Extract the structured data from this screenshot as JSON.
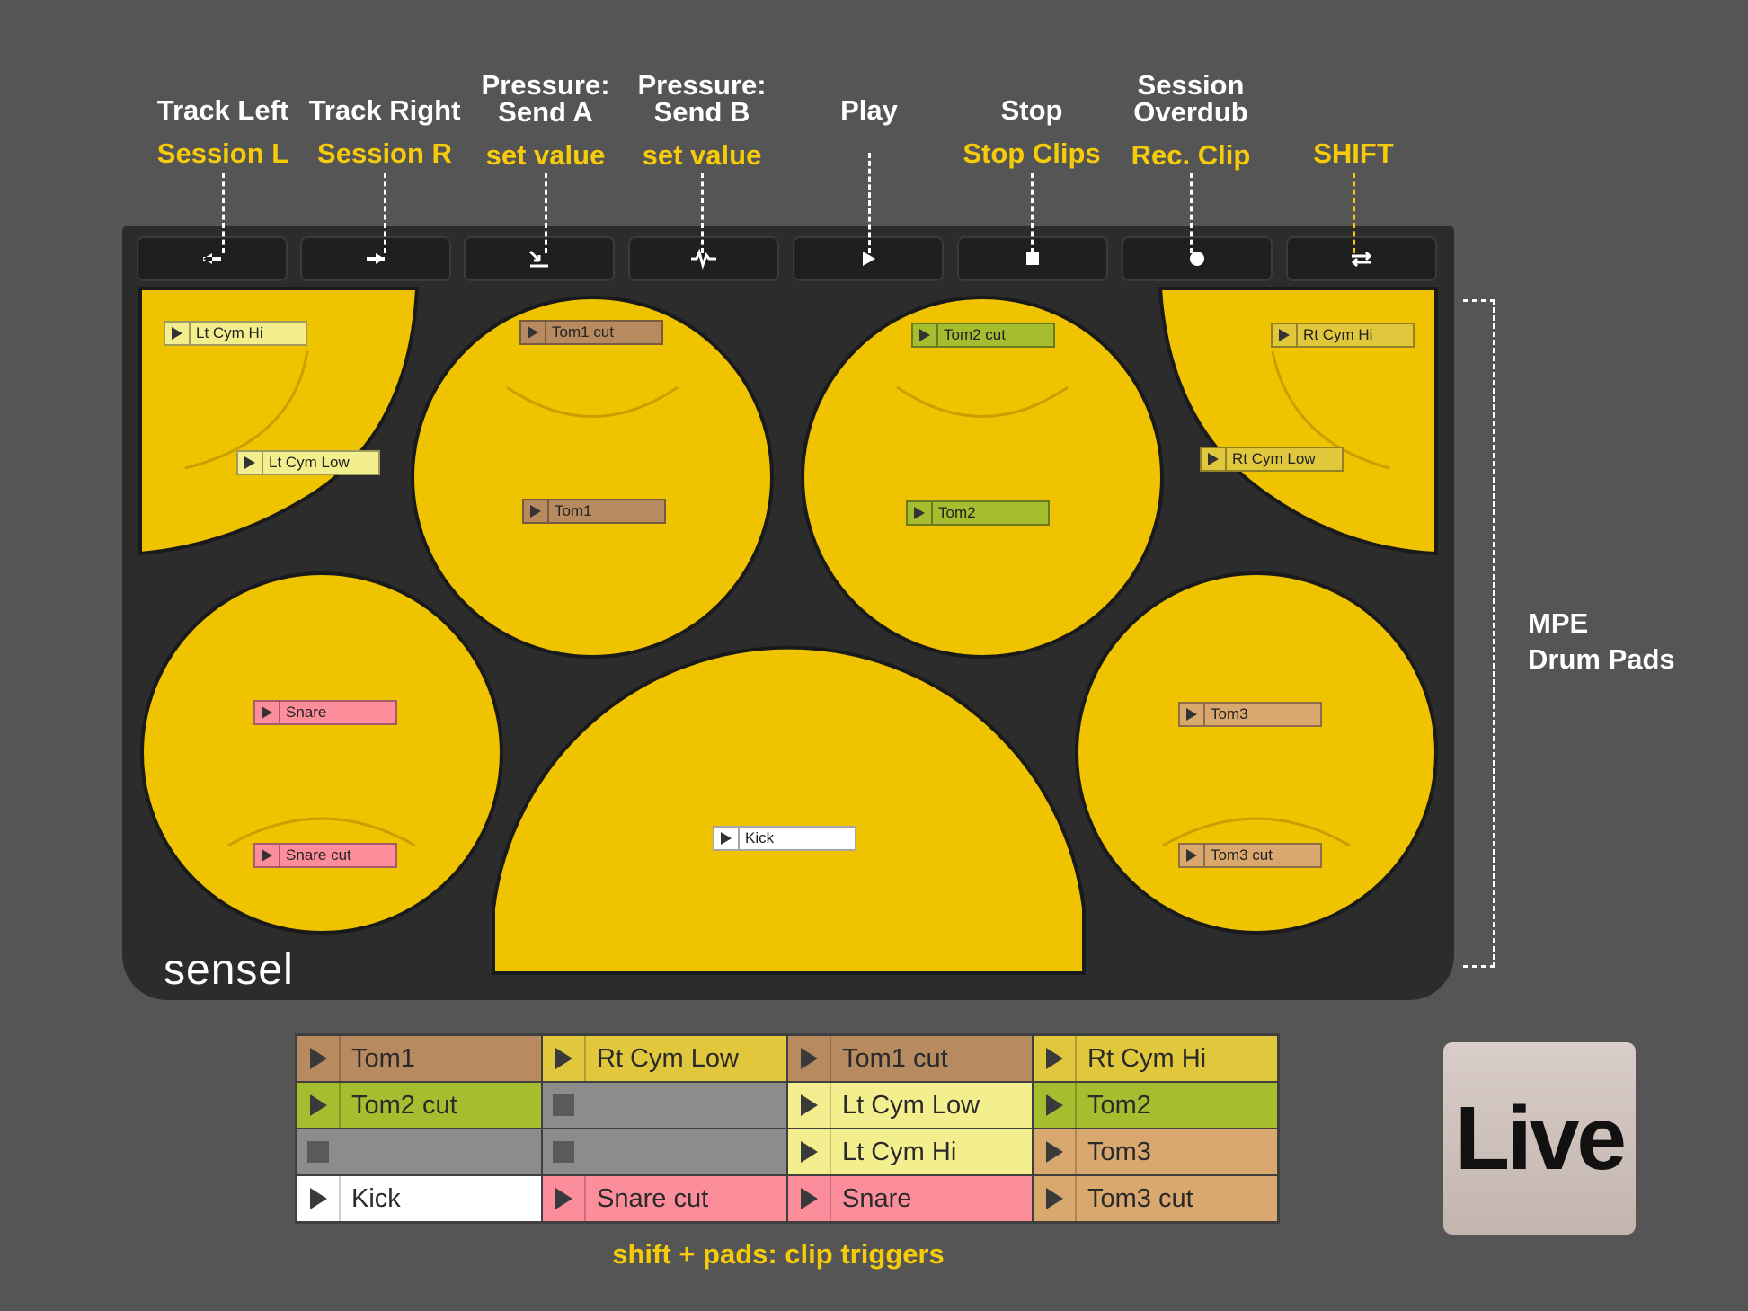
{
  "buttons": [
    {
      "top": "Track Left",
      "bottom": "Session L",
      "icon": "arrow-left-icon"
    },
    {
      "top": "Track Right",
      "bottom": "Session R",
      "icon": "arrow-right-icon"
    },
    {
      "top": "Pressure:\nSend A",
      "bottom": "set value",
      "icon": "send-a-icon"
    },
    {
      "top": "Pressure:\nSend B",
      "bottom": "set value",
      "icon": "waveform-icon"
    },
    {
      "top": "Play",
      "bottom": "",
      "icon": "play-icon"
    },
    {
      "top": "Stop",
      "bottom": "Stop Clips",
      "icon": "stop-icon"
    },
    {
      "top": "Session\nOverdub",
      "bottom": "Rec. Clip",
      "icon": "record-icon"
    },
    {
      "top": "",
      "bottom": "SHIFT",
      "icon": "loop-icon"
    }
  ],
  "pad_clips": [
    {
      "label": "Lt Cym Hi",
      "color": "#f4ef8e"
    },
    {
      "label": "Lt Cym Low",
      "color": "#f4ef8e"
    },
    {
      "label": "Tom1 cut",
      "color": "#b88a60"
    },
    {
      "label": "Tom1",
      "color": "#b88a60"
    },
    {
      "label": "Tom2 cut",
      "color": "#a5bd2f"
    },
    {
      "label": "Tom2",
      "color": "#a5bd2f"
    },
    {
      "label": "Rt Cym Hi",
      "color": "#e0c73b"
    },
    {
      "label": "Rt Cym Low",
      "color": "#e0c73b"
    },
    {
      "label": "Snare",
      "color": "#fc8d9b"
    },
    {
      "label": "Snare cut",
      "color": "#fc8d9b"
    },
    {
      "label": "Kick",
      "color": "#ffffff"
    },
    {
      "label": "Tom3",
      "color": "#d8a86e"
    },
    {
      "label": "Tom3 cut",
      "color": "#d8a86e"
    }
  ],
  "pad_color": "#efc300",
  "brand": "sensel",
  "side_label": {
    "line1": "MPE",
    "line2": "Drum Pads"
  },
  "session_grid": [
    [
      {
        "label": "Tom1",
        "color": "#b88a60",
        "state": "play"
      },
      {
        "label": "Rt Cym Low",
        "color": "#e0c73b",
        "state": "play"
      },
      {
        "label": "Tom1 cut",
        "color": "#b88a60",
        "state": "play"
      },
      {
        "label": "Rt Cym Hi",
        "color": "#e0c73b",
        "state": "play"
      }
    ],
    [
      {
        "label": "Tom2 cut",
        "color": "#a5bd2f",
        "state": "play"
      },
      {
        "label": "",
        "color": "#8c8c8c",
        "state": "empty"
      },
      {
        "label": "Lt Cym Low",
        "color": "#f4ef8e",
        "state": "play"
      },
      {
        "label": "Tom2",
        "color": "#a5bd2f",
        "state": "play"
      }
    ],
    [
      {
        "label": "",
        "color": "#8c8c8c",
        "state": "empty"
      },
      {
        "label": "",
        "color": "#8c8c8c",
        "state": "empty"
      },
      {
        "label": "Lt Cym Hi",
        "color": "#f4ef8e",
        "state": "play"
      },
      {
        "label": "Tom3",
        "color": "#d8a86e",
        "state": "play"
      }
    ],
    [
      {
        "label": "Kick",
        "color": "#ffffff",
        "state": "play"
      },
      {
        "label": "Snare cut",
        "color": "#fc8d9b",
        "state": "play"
      },
      {
        "label": "Snare",
        "color": "#fc8d9b",
        "state": "play"
      },
      {
        "label": "Tom3 cut",
        "color": "#d8a86e",
        "state": "play"
      }
    ]
  ],
  "footer": "shift + pads: clip triggers",
  "live_logo": "Live"
}
